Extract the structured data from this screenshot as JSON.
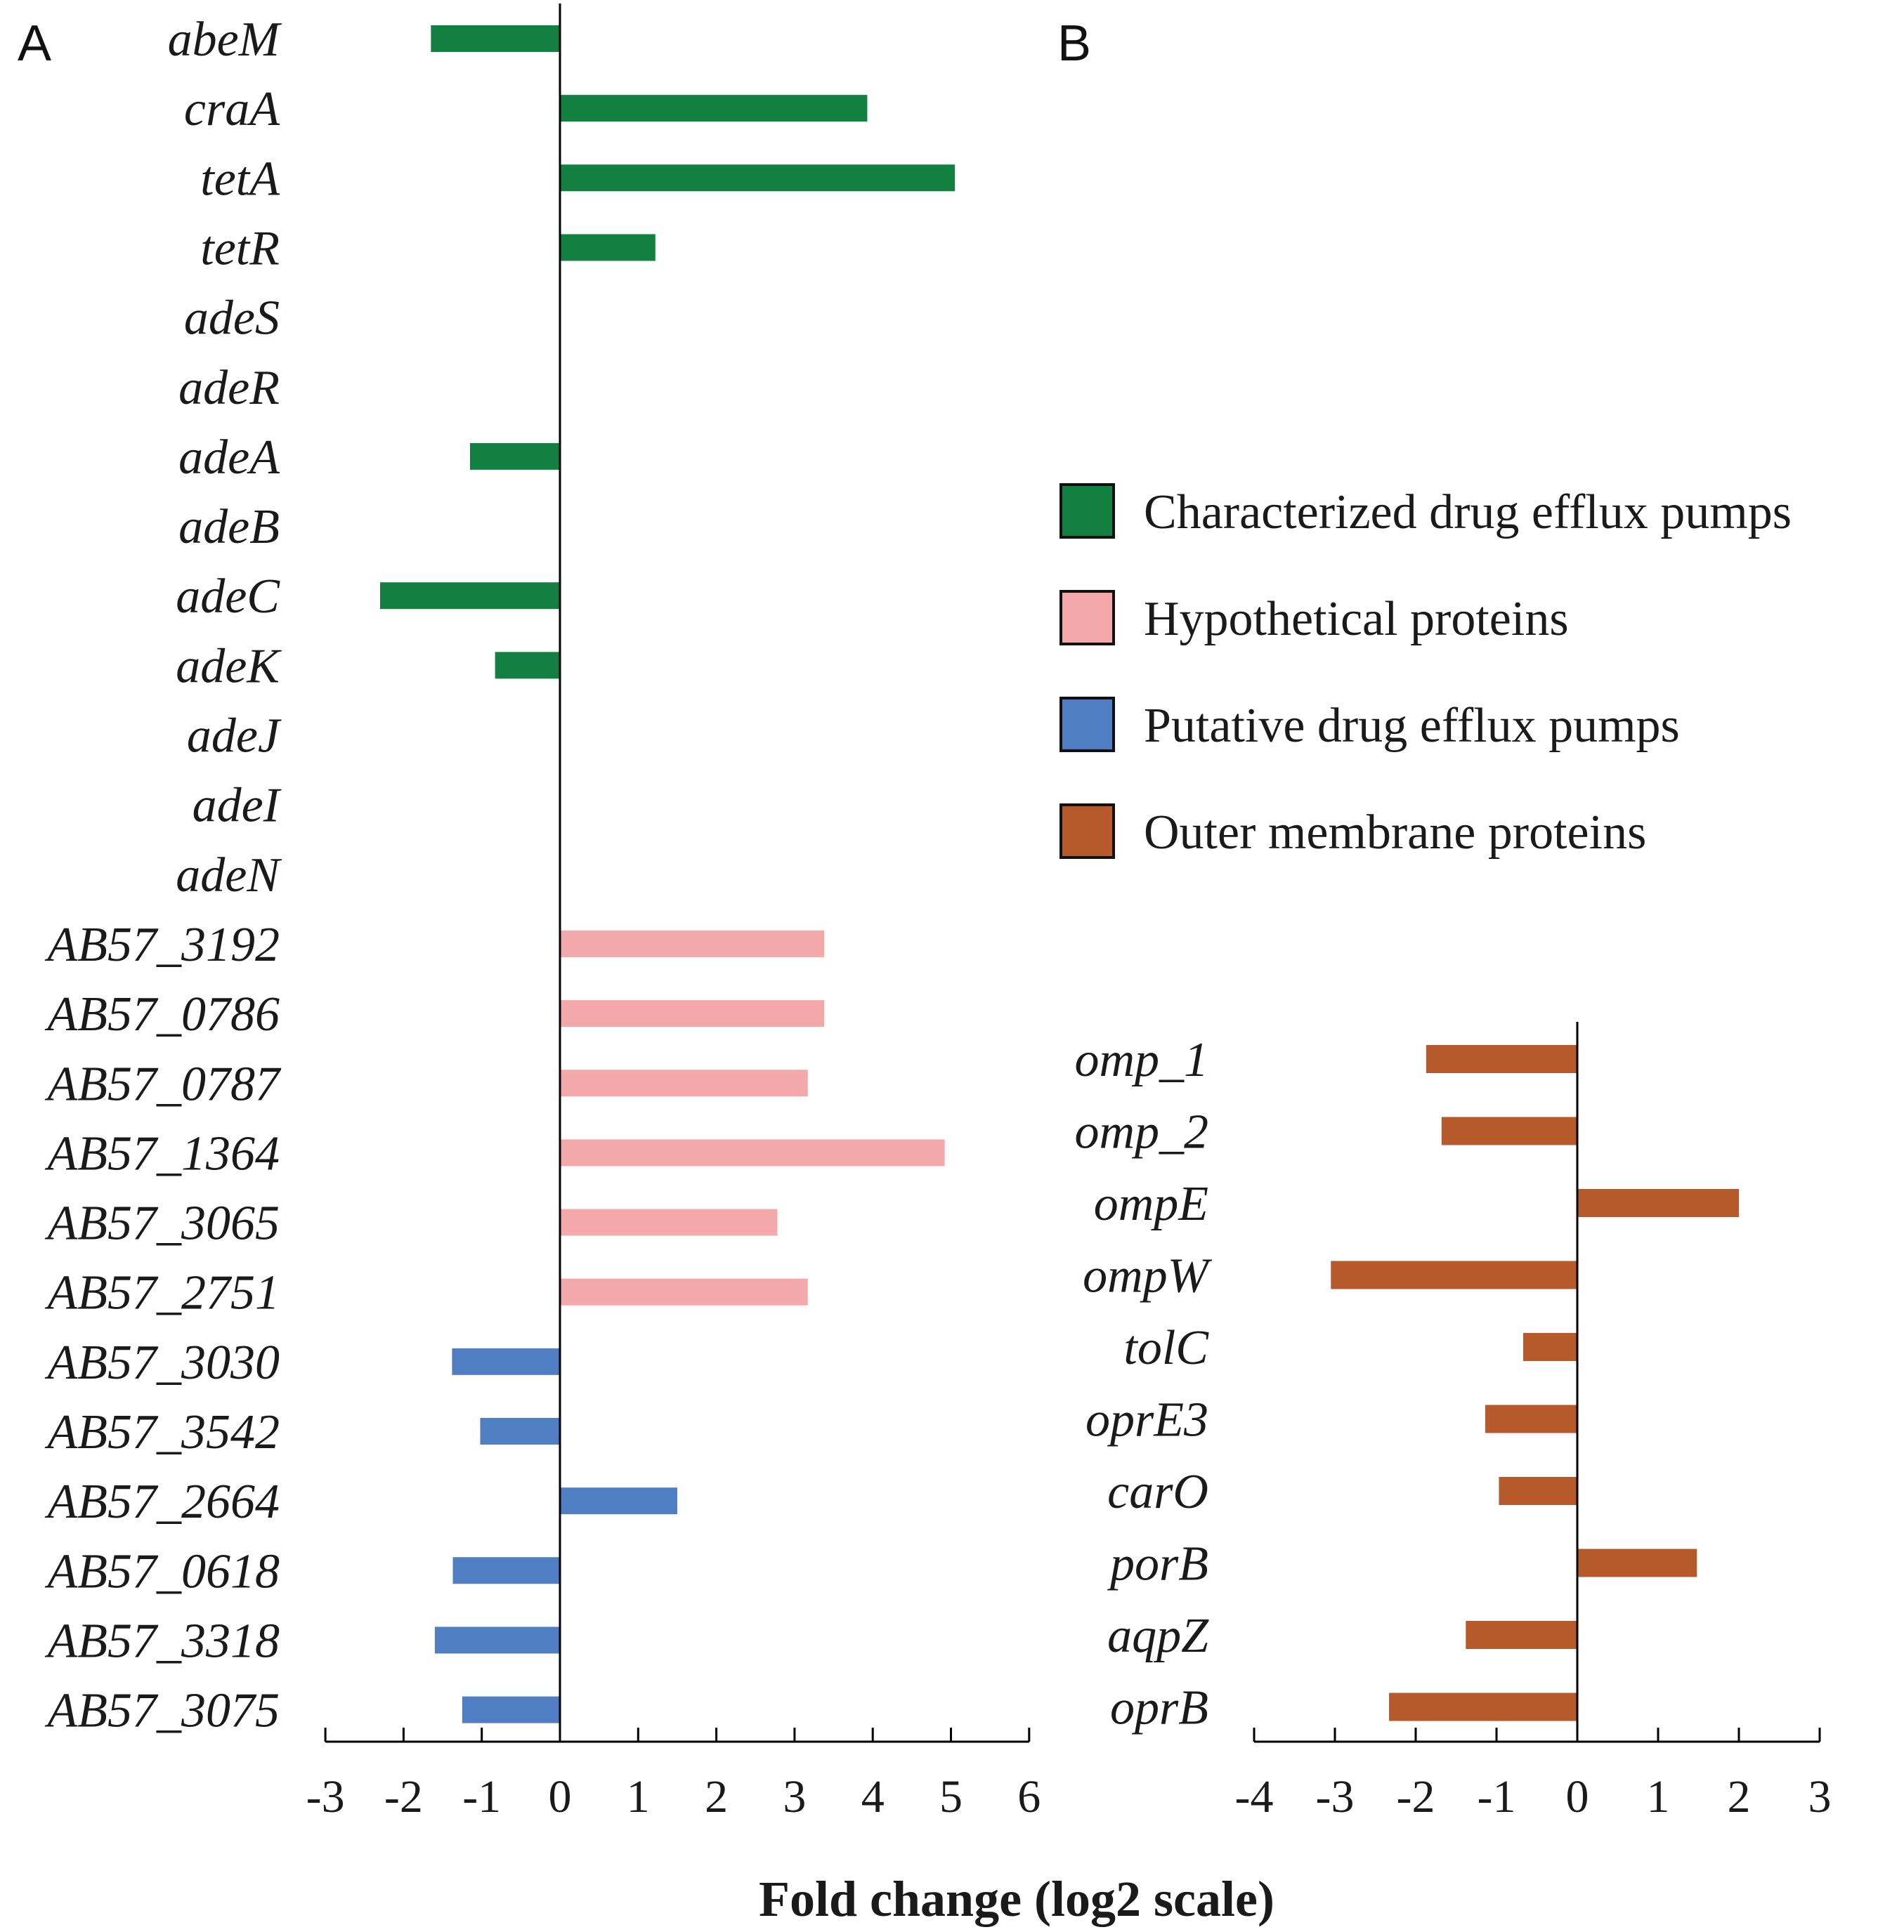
{
  "figure": {
    "xlabel": "Fold change (log2 scale)"
  },
  "colors": {
    "Characterized drug efflux pumps": "#128040",
    "Hypothetical proteins": "#f5a8aa",
    "Putative drug efflux pumps": "#4f7ec3",
    "Outer membrane proteins": "#b65a2c"
  },
  "legend": [
    "Characterized drug efflux pumps",
    "Hypothetical proteins",
    "Putative drug efflux pumps",
    "Outer membrane proteins"
  ],
  "chart_data": [
    {
      "panel": "A",
      "type": "bar",
      "orientation": "horizontal",
      "xlim": [
        -3,
        6
      ],
      "xticks": [
        -3,
        -2,
        -1,
        0,
        1,
        2,
        3,
        4,
        5,
        6
      ],
      "categories": [
        "abeM",
        "craA",
        "tetA",
        "tetR",
        "adeS",
        "adeR",
        "adeA",
        "adeB",
        "adeC",
        "adeK",
        "adeJ",
        "adeI",
        "adeN",
        "AB57_3192",
        "AB57_0786",
        "AB57_0787",
        "AB57_1364",
        "AB57_3065",
        "AB57_2751",
        "AB57_3030",
        "AB57_3542",
        "AB57_2664",
        "AB57_0618",
        "AB57_3318",
        "AB57_3075"
      ],
      "values": [
        -1.65,
        3.93,
        5.05,
        1.22,
        0,
        0,
        -1.15,
        0,
        -2.3,
        -0.83,
        0,
        0,
        0,
        3.38,
        3.38,
        3.17,
        4.92,
        2.78,
        3.17,
        -1.38,
        -1.02,
        1.5,
        -1.37,
        -1.6,
        -1.25
      ],
      "groups": [
        "Characterized drug efflux pumps",
        "Characterized drug efflux pumps",
        "Characterized drug efflux pumps",
        "Characterized drug efflux pumps",
        "Characterized drug efflux pumps",
        "Characterized drug efflux pumps",
        "Characterized drug efflux pumps",
        "Characterized drug efflux pumps",
        "Characterized drug efflux pumps",
        "Characterized drug efflux pumps",
        "Characterized drug efflux pumps",
        "Characterized drug efflux pumps",
        "Characterized drug efflux pumps",
        "Hypothetical proteins",
        "Hypothetical proteins",
        "Hypothetical proteins",
        "Hypothetical proteins",
        "Hypothetical proteins",
        "Hypothetical proteins",
        "Putative drug efflux pumps",
        "Putative drug efflux pumps",
        "Putative drug efflux pumps",
        "Putative drug efflux pumps",
        "Putative drug efflux pumps",
        "Putative drug efflux pumps"
      ]
    },
    {
      "panel": "B",
      "type": "bar",
      "orientation": "horizontal",
      "xlim": [
        -4,
        3
      ],
      "xticks": [
        -4,
        -3,
        -2,
        -1,
        0,
        1,
        2,
        3
      ],
      "categories": [
        "omp_1",
        "omp_2",
        "ompE",
        "ompW",
        "tolC",
        "oprE3",
        "carO",
        "porB",
        "aqpZ",
        "oprB"
      ],
      "values": [
        -1.87,
        -1.68,
        2.0,
        -3.05,
        -0.67,
        -1.14,
        -0.97,
        1.48,
        -1.38,
        -2.33
      ],
      "groups": [
        "Outer membrane proteins",
        "Outer membrane proteins",
        "Outer membrane proteins",
        "Outer membrane proteins",
        "Outer membrane proteins",
        "Outer membrane proteins",
        "Outer membrane proteins",
        "Outer membrane proteins",
        "Outer membrane proteins",
        "Outer membrane proteins"
      ]
    }
  ]
}
